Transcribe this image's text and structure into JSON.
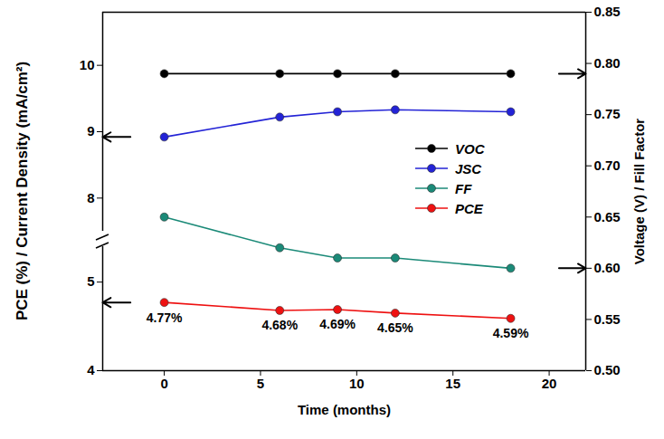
{
  "chart_data": {
    "type": "line",
    "x_label": "Time (months)",
    "y_label": "PCE (%) / Current Density (mA/cm²)",
    "y2_label": "Voltage (V) / Fill Factor",
    "x": [
      0,
      6,
      9,
      12,
      18
    ],
    "xlim": [
      -3.2,
      21.9
    ],
    "xticks": [
      0,
      5,
      10,
      15,
      20
    ],
    "ylim": [
      [
        4,
        5.4
      ],
      [
        7.5,
        10.8
      ]
    ],
    "yticks": [
      4,
      5,
      8,
      9,
      10
    ],
    "y2lim": [
      0.5,
      0.85
    ],
    "y2ticks": [
      {
        "value": 0.5,
        "label": "0.50"
      },
      0.55,
      {
        "value": 0.6,
        "label": "0.60"
      },
      0.65,
      {
        "value": 0.7,
        "label": "0.70"
      },
      0.75,
      {
        "value": 0.8,
        "label": "0.80"
      },
      0.85
    ],
    "legend": "right",
    "grid": false,
    "data_labels": true,
    "series": [
      {
        "name": "VOC",
        "color": "#000000",
        "marker": "circle",
        "line_style": "solid",
        "axis": "y2",
        "values": [
          0.79,
          0.79,
          0.79,
          0.79,
          0.79
        ]
      },
      {
        "name": "JSC",
        "color": "#2323d6",
        "marker": "circle",
        "line_style": "solid",
        "values": [
          8.92,
          9.22,
          9.3,
          9.33,
          9.3
        ]
      },
      {
        "name": "FF",
        "color": "#1b8a78",
        "marker": "circle",
        "line_style": "solid",
        "axis": "y2",
        "values": [
          0.65,
          0.62,
          0.61,
          0.61,
          0.6
        ]
      },
      {
        "name": "PCE",
        "color": "#ee1111",
        "marker": "circle",
        "line_style": "solid",
        "values": [
          4.77,
          4.68,
          4.69,
          4.65,
          4.59
        ],
        "value_labels": [
          "4.77%",
          "4.68%",
          "4.69%",
          "4.65%",
          "4.59%"
        ]
      }
    ]
  }
}
